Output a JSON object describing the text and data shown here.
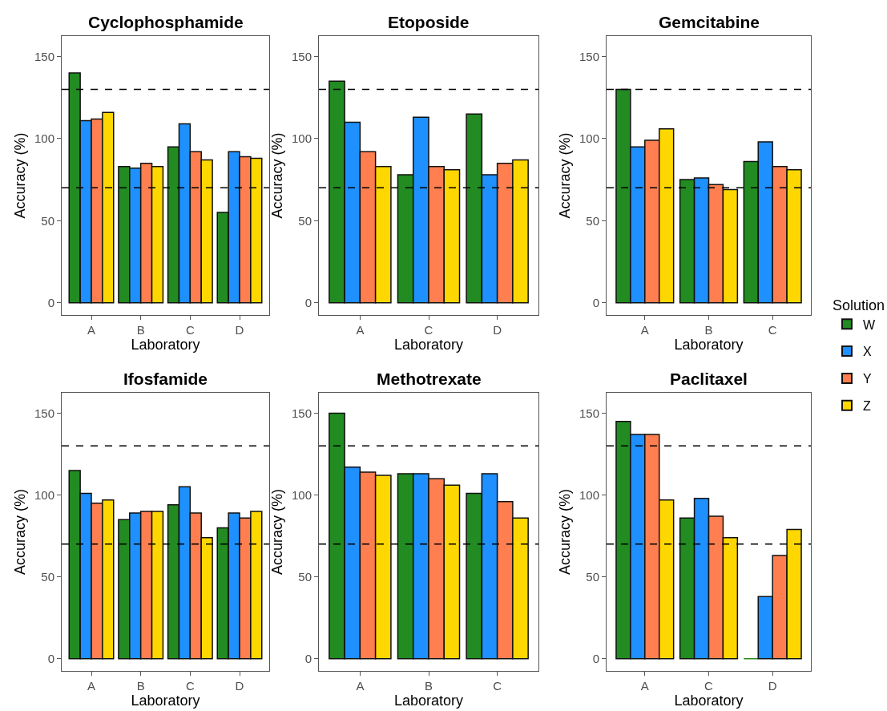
{
  "chart_data": [
    {
      "type": "bar",
      "title": "Cyclophosphamide",
      "xlabel": "Laboratory",
      "ylabel": "Accuracy (%)",
      "categories": [
        "A",
        "B",
        "C",
        "D"
      ],
      "ylim": [
        -7.5,
        162.5
      ],
      "yticks": [
        0,
        50,
        100,
        150
      ],
      "legend": "right",
      "legend_title": "Solution",
      "series": [
        {
          "name": "W",
          "color": "#228b22",
          "values": [
            140,
            83,
            95,
            55
          ]
        },
        {
          "name": "X",
          "color": "#1e90ff",
          "values": [
            111,
            82,
            109,
            92
          ]
        },
        {
          "name": "Y",
          "color": "#ff7f50",
          "values": [
            112,
            85,
            92,
            89
          ]
        },
        {
          "name": "Z",
          "color": "#ffd700",
          "values": [
            116,
            83,
            87,
            88
          ]
        }
      ],
      "ref_lines": [
        {
          "axis": "y",
          "value": 70,
          "line_style": "dashed"
        },
        {
          "axis": "y",
          "value": 130,
          "line_style": "dashed"
        }
      ]
    },
    {
      "type": "bar",
      "title": "Etoposide",
      "xlabel": "Laboratory",
      "ylabel": "Accuracy (%)",
      "categories": [
        "A",
        "C",
        "D"
      ],
      "ylim": [
        -7.5,
        162.5
      ],
      "yticks": [
        0,
        50,
        100,
        150
      ],
      "series": [
        {
          "color": "#228b22",
          "values": [
            135,
            78,
            115
          ]
        },
        {
          "color": "#1e90ff",
          "values": [
            110,
            113,
            78
          ]
        },
        {
          "color": "#ff7f50",
          "values": [
            92,
            83,
            85
          ]
        },
        {
          "color": "#ffd700",
          "values": [
            83,
            81,
            87
          ]
        }
      ],
      "ref_lines": [
        {
          "axis": "y",
          "value": 70,
          "line_style": "dashed"
        },
        {
          "axis": "y",
          "value": 130,
          "line_style": "dashed"
        }
      ]
    },
    {
      "type": "bar",
      "title": "Gemcitabine",
      "xlabel": "Laboratory",
      "ylabel": "Accuracy (%)",
      "categories": [
        "A",
        "B",
        "C"
      ],
      "ylim": [
        -7.5,
        162.5
      ],
      "yticks": [
        0,
        50,
        100,
        150
      ],
      "series": [
        {
          "color": "#228b22",
          "values": [
            130,
            75,
            86
          ]
        },
        {
          "color": "#1e90ff",
          "values": [
            95,
            76,
            98
          ]
        },
        {
          "color": "#ff7f50",
          "values": [
            99,
            72,
            83
          ]
        },
        {
          "color": "#ffd700",
          "values": [
            106,
            69,
            81
          ]
        }
      ],
      "ref_lines": [
        {
          "axis": "y",
          "value": 70,
          "line_style": "dashed"
        },
        {
          "axis": "y",
          "value": 130,
          "line_style": "dashed"
        }
      ]
    },
    {
      "type": "bar",
      "title": "Ifosfamide",
      "xlabel": "Laboratory",
      "ylabel": "Accuracy (%)",
      "categories": [
        "A",
        "B",
        "C",
        "D"
      ],
      "ylim": [
        -7.5,
        162.5
      ],
      "yticks": [
        0,
        50,
        100,
        150
      ],
      "series": [
        {
          "color": "#228b22",
          "values": [
            115,
            85,
            94,
            80
          ]
        },
        {
          "color": "#1e90ff",
          "values": [
            101,
            89,
            105,
            89
          ]
        },
        {
          "color": "#ff7f50",
          "values": [
            95,
            90,
            89,
            86
          ]
        },
        {
          "color": "#ffd700",
          "values": [
            97,
            90,
            74,
            90
          ]
        }
      ],
      "ref_lines": [
        {
          "axis": "y",
          "value": 70,
          "line_style": "dashed"
        },
        {
          "axis": "y",
          "value": 130,
          "line_style": "dashed"
        }
      ]
    },
    {
      "type": "bar",
      "title": "Methotrexate",
      "xlabel": "Laboratory",
      "ylabel": "Accuracy (%)",
      "categories": [
        "A",
        "B",
        "C"
      ],
      "ylim": [
        -7.5,
        162.5
      ],
      "yticks": [
        0,
        50,
        100,
        150
      ],
      "series": [
        {
          "color": "#228b22",
          "values": [
            150,
            113,
            101
          ]
        },
        {
          "color": "#1e90ff",
          "values": [
            117,
            113,
            113
          ]
        },
        {
          "color": "#ff7f50",
          "values": [
            114,
            110,
            96
          ]
        },
        {
          "color": "#ffd700",
          "values": [
            112,
            106,
            86
          ]
        }
      ],
      "ref_lines": [
        {
          "axis": "y",
          "value": 70,
          "line_style": "dashed"
        },
        {
          "axis": "y",
          "value": 130,
          "line_style": "dashed"
        }
      ]
    },
    {
      "type": "bar",
      "title": "Paclitaxel",
      "xlabel": "Laboratory",
      "ylabel": "Accuracy (%)",
      "categories": [
        "A",
        "C",
        "D"
      ],
      "ylim": [
        -7.5,
        162.5
      ],
      "yticks": [
        0,
        50,
        100,
        150
      ],
      "series": [
        {
          "color": "#228b22",
          "values": [
            145,
            86,
            0
          ]
        },
        {
          "color": "#1e90ff",
          "values": [
            137,
            98,
            38
          ]
        },
        {
          "color": "#ff7f50",
          "values": [
            137,
            87,
            63
          ]
        },
        {
          "color": "#ffd700",
          "values": [
            97,
            74,
            79
          ]
        }
      ],
      "ref_lines": [
        {
          "axis": "y",
          "value": 70,
          "line_style": "dashed"
        },
        {
          "axis": "y",
          "value": 130,
          "line_style": "dashed"
        }
      ]
    }
  ]
}
